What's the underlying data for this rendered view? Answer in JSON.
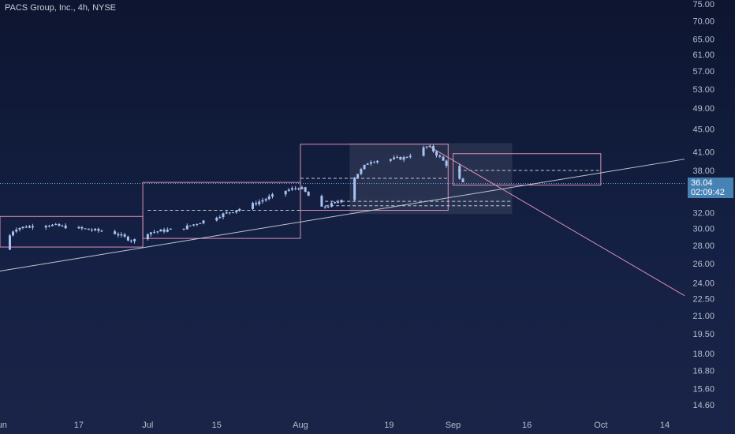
{
  "header": {
    "title": "PACS Group, Inc., 4h, NYSE"
  },
  "current_price": {
    "price": "36.04",
    "countdown": "02:09:42",
    "value": 36.04
  },
  "colors": {
    "background_top": "#0d1530",
    "background_bottom": "#1a2448",
    "candle": "#a9c2f0",
    "box_outline": "#d98fb4",
    "trendline_up": "#c0c4d0",
    "trendline_down": "#d98fb4",
    "dashed_line": "#c6c9d6",
    "price_badge": "#4682b4"
  },
  "chart_data": {
    "type": "candlestick",
    "title": "PACS Group, Inc., 4h, NYSE",
    "y_scale": "log",
    "y_ticks": [
      "75.00",
      "70.00",
      "65.00",
      "61.00",
      "57.00",
      "53.00",
      "49.00",
      "45.00",
      "41.00",
      "38.00",
      "32.00",
      "30.00",
      "28.00",
      "26.00",
      "24.00",
      "22.50",
      "21.00",
      "19.50",
      "18.00",
      "16.80",
      "15.60",
      "14.60"
    ],
    "x_ticks": [
      "Jun",
      "17",
      "Jul",
      "15",
      "Aug",
      "19",
      "Sep",
      "16",
      "Oct",
      "14"
    ],
    "x_range": [
      "2024-06-01",
      "2024-10-18"
    ],
    "grid": false,
    "series": [
      {
        "date": "2024-06-01",
        "close": 27.5
      },
      {
        "date": "2024-06-04",
        "close": 30.0
      },
      {
        "date": "2024-06-10",
        "close": 30.5
      },
      {
        "date": "2024-06-17",
        "close": 30.0
      },
      {
        "date": "2024-06-24",
        "close": 29.5
      },
      {
        "date": "2024-06-28",
        "close": 28.5
      },
      {
        "date": "2024-07-01",
        "close": 29.5
      },
      {
        "date": "2024-07-08",
        "close": 30.0
      },
      {
        "date": "2024-07-15",
        "close": 31.5
      },
      {
        "date": "2024-07-22",
        "close": 33.0
      },
      {
        "date": "2024-07-29",
        "close": 35.0
      },
      {
        "date": "2024-08-01",
        "close": 35.5
      },
      {
        "date": "2024-08-05",
        "close": 32.5
      },
      {
        "date": "2024-08-09",
        "close": 33.5
      },
      {
        "date": "2024-08-12",
        "close": 37.0
      },
      {
        "date": "2024-08-15",
        "close": 39.5
      },
      {
        "date": "2024-08-22",
        "close": 40.0
      },
      {
        "date": "2024-08-27",
        "close": 42.0
      },
      {
        "date": "2024-08-30",
        "close": 39.5
      },
      {
        "date": "2024-09-03",
        "close": 36.04
      }
    ],
    "annotations": {
      "boxes": [
        {
          "start": "2024-06-01",
          "end": "2024-06-30",
          "high": 31.5,
          "low": 27.8
        },
        {
          "start": "2024-06-30",
          "end": "2024-08-01",
          "high": 36.2,
          "low": 28.8
        },
        {
          "start": "2024-08-01",
          "end": "2024-08-31",
          "high": 42.3,
          "low": 32.3
        },
        {
          "start": "2024-09-01",
          "end": "2024-10-01",
          "high": 40.7,
          "low": 35.8
        }
      ],
      "dashed_levels": [
        {
          "start": "2024-07-01",
          "end": "2024-08-01",
          "price": 32.3
        },
        {
          "start": "2024-08-01",
          "end": "2024-08-31",
          "price": 36.8
        },
        {
          "start": "2024-08-06",
          "end": "2024-09-13",
          "price": 33.5
        },
        {
          "start": "2024-08-06",
          "end": "2024-09-13",
          "price": 32.9
        },
        {
          "start": "2024-09-02",
          "end": "2024-10-01",
          "price": 38.0
        }
      ],
      "trendlines": [
        {
          "from": [
            "2024-06-01",
            25.2
          ],
          "to": [
            "2024-10-18",
            39.8
          ],
          "color": "up"
        },
        {
          "from": [
            "2024-08-27",
            42.0
          ],
          "to": [
            "2024-10-18",
            22.8
          ],
          "color": "down"
        }
      ],
      "shaded_zones": [
        {
          "start": "2024-08-11",
          "end": "2024-09-13",
          "high": 42.5,
          "low": 31.8
        }
      ]
    }
  }
}
